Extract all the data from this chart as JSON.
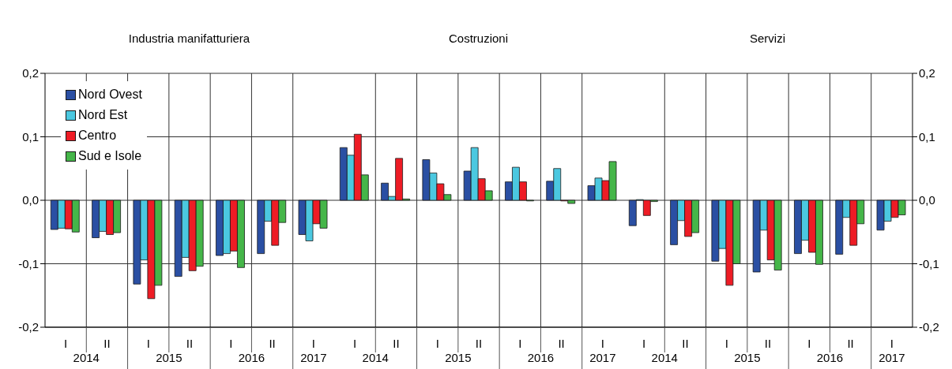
{
  "chart_data": [
    {
      "type": "bar",
      "title": "Industria manifatturiera",
      "categories": [
        "I",
        "II",
        "I",
        "II",
        "I",
        "II",
        "I"
      ],
      "annotations": [
        "2014",
        "2015",
        "2016",
        "2017"
      ],
      "ylim": [
        -0.2,
        0.2
      ],
      "yticks": [
        {
          "value": -0.2,
          "label": "-0,2"
        },
        {
          "value": -0.1,
          "label": "-0,1"
        },
        {
          "value": 0,
          "label": "0,0"
        },
        {
          "value": 0.1,
          "label": "0,1"
        },
        {
          "value": 0.2,
          "label": "0,2"
        }
      ],
      "grid": true,
      "legend": "top left",
      "series": [
        {
          "name": "Nord Ovest",
          "color": "#2a4fa3",
          "values": [
            -0.046,
            -0.059,
            -0.132,
            -0.12,
            -0.087,
            -0.084,
            -0.054
          ]
        },
        {
          "name": "Nord Est",
          "color": "#4bc8e0",
          "values": [
            -0.044,
            -0.049,
            -0.094,
            -0.09,
            -0.084,
            -0.033,
            -0.064
          ]
        },
        {
          "name": "Centro",
          "color": "#ee1c25",
          "values": [
            -0.045,
            -0.054,
            -0.155,
            -0.111,
            -0.08,
            -0.071,
            -0.037
          ]
        },
        {
          "name": "Sud e Isole",
          "color": "#45b649",
          "values": [
            -0.05,
            -0.051,
            -0.134,
            -0.104,
            -0.106,
            -0.035,
            -0.044
          ]
        }
      ]
    },
    {
      "type": "bar",
      "title": "Costruzioni",
      "categories": [
        "I",
        "II",
        "I",
        "II",
        "I",
        "II",
        "I"
      ],
      "annotations": [
        "2014",
        "2015",
        "2016",
        "2017"
      ],
      "ylim": [
        -0.2,
        0.2
      ],
      "yticks": [
        -0.2,
        -0.1,
        0,
        0.1,
        0.2
      ],
      "grid": true,
      "tick_labels": "x",
      "series": [
        {
          "color": "#2a4fa3",
          "values": [
            0.083,
            0.027,
            0.064,
            0.046,
            0.029,
            0.03,
            0.023
          ]
        },
        {
          "color": "#4bc8e0",
          "values": [
            0.071,
            0.006,
            0.043,
            0.083,
            0.052,
            0.05,
            0.035
          ]
        },
        {
          "color": "#ee1c25",
          "values": [
            0.104,
            0.066,
            0.026,
            0.034,
            0.029,
            -0.001,
            0.031
          ]
        },
        {
          "color": "#45b649",
          "values": [
            0.04,
            0.002,
            0.009,
            0.015,
            -0.001,
            -0.005,
            0.061
          ]
        }
      ]
    },
    {
      "type": "bar",
      "title": "Servizi",
      "categories": [
        "I",
        "II",
        "I",
        "II",
        "I",
        "II",
        "I"
      ],
      "annotations": [
        "2014",
        "2015",
        "2016",
        "2017"
      ],
      "y2lim": [
        -0.2,
        0.2
      ],
      "y2ticks": [
        {
          "value": -0.2,
          "label": "-0,2"
        },
        {
          "value": -0.1,
          "label": "-0,1"
        },
        {
          "value": 0,
          "label": "0,0"
        },
        {
          "value": 0.1,
          "label": "0,1"
        },
        {
          "value": 0.2,
          "label": "0,2"
        }
      ],
      "grid": true,
      "series": [
        {
          "color": "#2a4fa3",
          "axis": "y2",
          "values": [
            -0.04,
            -0.07,
            -0.096,
            -0.113,
            -0.084,
            -0.085,
            -0.047
          ]
        },
        {
          "color": "#4bc8e0",
          "axis": "y2",
          "values": [
            0.001,
            -0.032,
            -0.076,
            -0.047,
            -0.063,
            -0.027,
            -0.033
          ]
        },
        {
          "color": "#ee1c25",
          "axis": "y2",
          "values": [
            -0.024,
            -0.057,
            -0.134,
            -0.094,
            -0.082,
            -0.071,
            -0.027
          ]
        },
        {
          "color": "#45b649",
          "axis": "y2",
          "values": [
            -0.002,
            -0.051,
            -0.1,
            -0.11,
            -0.101,
            -0.037,
            -0.023
          ]
        }
      ]
    }
  ]
}
